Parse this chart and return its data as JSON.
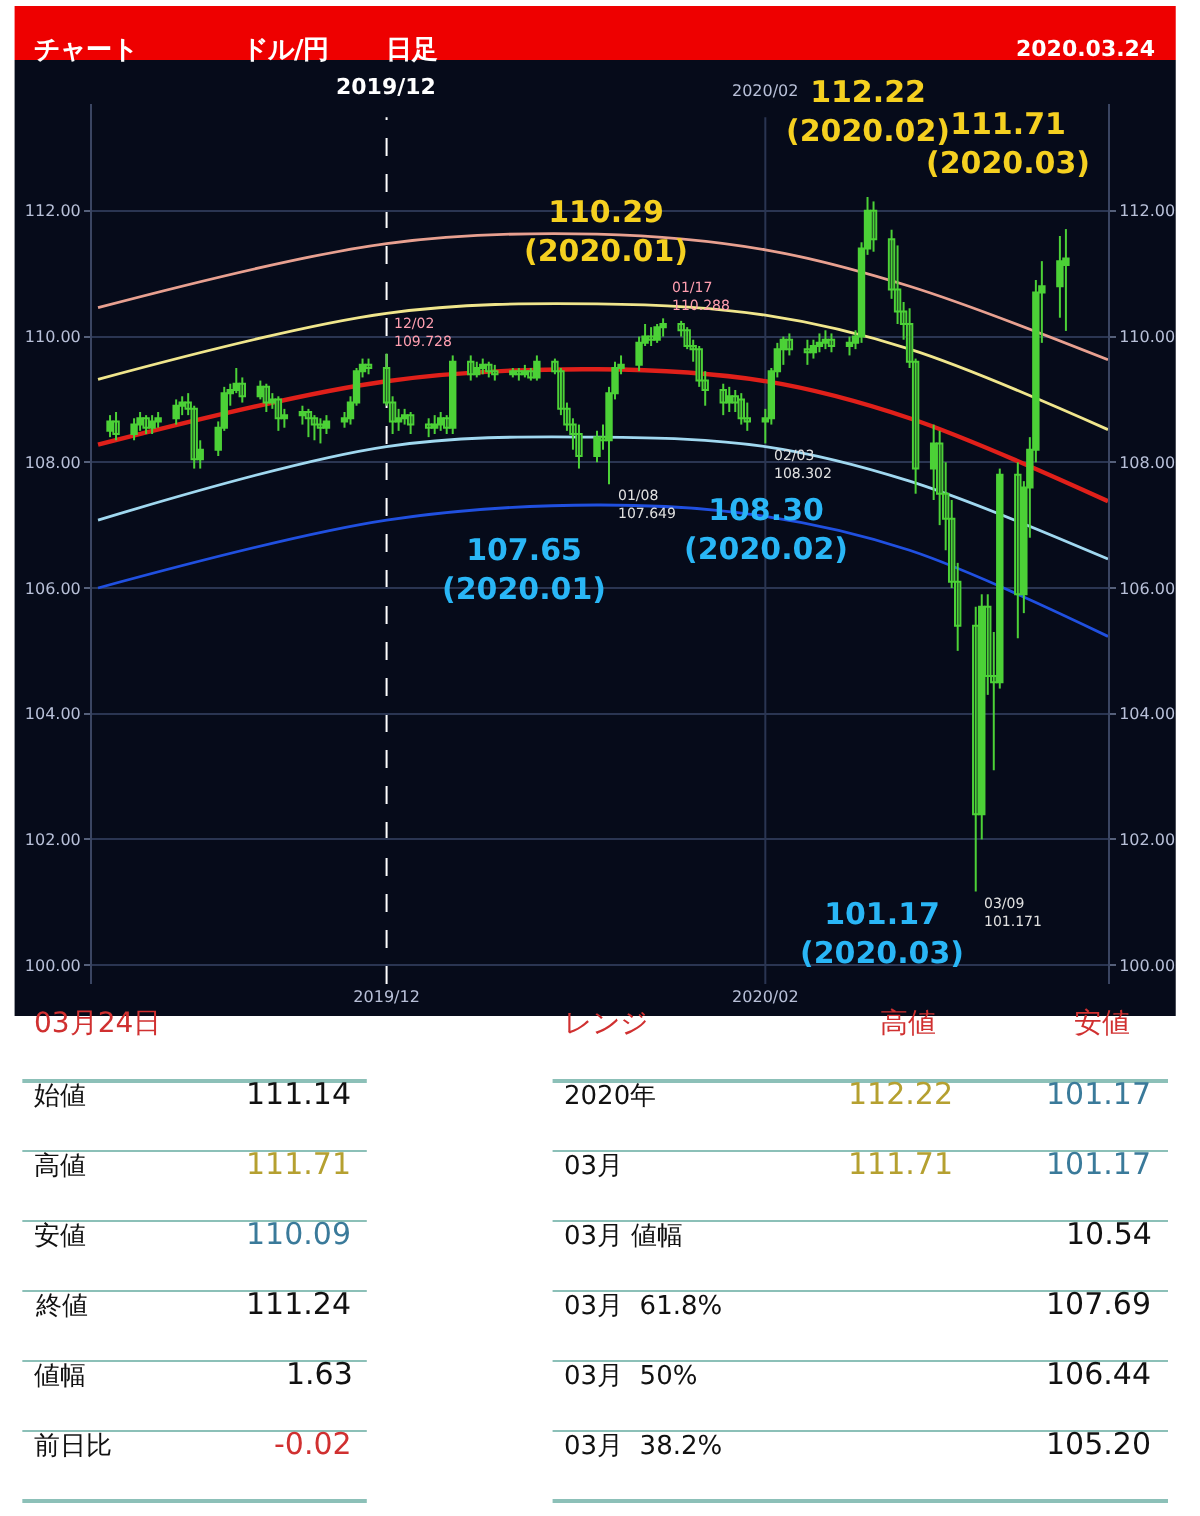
{
  "chart_data": [
    {
      "type": "candlestick",
      "title": "チャート",
      "subtitle": "ドル/円",
      "color": "#4cd137",
      "x": [
        "2019-10-17",
        "2019-10-18",
        "2019-10-21",
        "2019-10-22",
        "2019-10-23",
        "2019-10-24",
        "2019-10-25",
        "2019-10-28",
        "2019-10-29",
        "2019-10-30",
        "2019-10-31",
        "2019-11-01",
        "2019-11-04",
        "2019-11-05",
        "2019-11-06",
        "2019-11-07",
        "2019-11-08",
        "2019-11-11",
        "2019-11-12",
        "2019-11-13",
        "2019-11-14",
        "2019-11-15",
        "2019-11-18",
        "2019-11-19",
        "2019-11-20",
        "2019-11-21",
        "2019-11-22",
        "2019-11-25",
        "2019-11-26",
        "2019-11-27",
        "2019-11-28",
        "2019-11-29",
        "2019-12-02",
        "2019-12-03",
        "2019-12-04",
        "2019-12-05",
        "2019-12-06",
        "2019-12-09",
        "2019-12-10",
        "2019-12-11",
        "2019-12-12",
        "2019-12-13",
        "2019-12-16",
        "2019-12-17",
        "2019-12-18",
        "2019-12-19",
        "2019-12-20",
        "2019-12-23",
        "2019-12-24",
        "2019-12-25",
        "2019-12-26",
        "2019-12-27",
        "2019-12-30",
        "2019-12-31",
        "2020-01-01",
        "2020-01-02",
        "2020-01-03",
        "2020-01-06",
        "2020-01-07",
        "2020-01-08",
        "2020-01-09",
        "2020-01-10",
        "2020-01-13",
        "2020-01-14",
        "2020-01-15",
        "2020-01-16",
        "2020-01-17",
        "2020-01-20",
        "2020-01-21",
        "2020-01-22",
        "2020-01-23",
        "2020-01-24",
        "2020-01-27",
        "2020-01-28",
        "2020-01-29",
        "2020-01-30",
        "2020-01-31",
        "2020-02-03",
        "2020-02-04",
        "2020-02-05",
        "2020-02-06",
        "2020-02-07",
        "2020-02-10",
        "2020-02-11",
        "2020-02-12",
        "2020-02-13",
        "2020-02-14",
        "2020-02-17",
        "2020-02-18",
        "2020-02-19",
        "2020-02-20",
        "2020-02-21",
        "2020-02-24",
        "2020-02-25",
        "2020-02-26",
        "2020-02-27",
        "2020-02-28",
        "2020-03-02",
        "2020-03-03",
        "2020-03-04",
        "2020-03-05",
        "2020-03-06",
        "2020-03-09",
        "2020-03-10",
        "2020-03-11",
        "2020-03-12",
        "2020-03-13",
        "2020-03-16",
        "2020-03-17",
        "2020-03-18",
        "2020-03-19",
        "2020-03-20",
        "2020-03-23",
        "2020-03-24"
      ],
      "ohlc": [
        [
          108.5,
          108.75,
          108.4,
          108.65
        ],
        [
          108.65,
          108.8,
          108.35,
          108.45
        ],
        [
          108.45,
          108.7,
          108.35,
          108.6
        ],
        [
          108.6,
          108.8,
          108.5,
          108.7
        ],
        [
          108.7,
          108.75,
          108.45,
          108.55
        ],
        [
          108.55,
          108.75,
          108.45,
          108.65
        ],
        [
          108.65,
          108.8,
          108.55,
          108.7
        ],
        [
          108.7,
          109.0,
          108.6,
          108.9
        ],
        [
          108.9,
          109.05,
          108.75,
          108.95
        ],
        [
          108.95,
          109.1,
          108.75,
          108.85
        ],
        [
          108.85,
          108.9,
          107.9,
          108.05
        ],
        [
          108.05,
          108.35,
          107.9,
          108.2
        ],
        [
          108.2,
          108.65,
          108.1,
          108.55
        ],
        [
          108.55,
          109.2,
          108.5,
          109.1
        ],
        [
          109.1,
          109.25,
          108.9,
          109.15
        ],
        [
          109.15,
          109.5,
          109.1,
          109.25
        ],
        [
          109.25,
          109.35,
          108.95,
          109.05
        ],
        [
          109.05,
          109.3,
          109.0,
          109.2
        ],
        [
          109.2,
          109.25,
          108.8,
          108.95
        ],
        [
          108.95,
          109.1,
          108.85,
          109.0
        ],
        [
          109.0,
          109.05,
          108.5,
          108.7
        ],
        [
          108.7,
          108.85,
          108.55,
          108.75
        ],
        [
          108.75,
          108.9,
          108.6,
          108.8
        ],
        [
          108.8,
          108.85,
          108.4,
          108.7
        ],
        [
          108.7,
          108.75,
          108.35,
          108.6
        ],
        [
          108.6,
          108.7,
          108.3,
          108.55
        ],
        [
          108.55,
          108.75,
          108.45,
          108.65
        ],
        [
          108.65,
          108.8,
          108.55,
          108.7
        ],
        [
          108.7,
          109.05,
          108.6,
          108.95
        ],
        [
          108.95,
          109.5,
          108.9,
          109.45
        ],
        [
          109.45,
          109.65,
          109.35,
          109.55
        ],
        [
          109.55,
          109.65,
          109.4,
          109.5
        ],
        [
          109.5,
          109.73,
          108.9,
          108.95
        ],
        [
          108.95,
          109.05,
          108.45,
          108.65
        ],
        [
          108.65,
          108.85,
          108.5,
          108.7
        ],
        [
          108.7,
          108.85,
          108.6,
          108.75
        ],
        [
          108.75,
          108.8,
          108.45,
          108.6
        ],
        [
          108.6,
          108.7,
          108.4,
          108.55
        ],
        [
          108.55,
          108.75,
          108.45,
          108.6
        ],
        [
          108.6,
          108.8,
          108.5,
          108.7
        ],
        [
          108.7,
          108.75,
          108.45,
          108.55
        ],
        [
          108.55,
          109.7,
          108.45,
          109.6
        ],
        [
          109.6,
          109.7,
          109.3,
          109.4
        ],
        [
          109.4,
          109.6,
          109.35,
          109.5
        ],
        [
          109.5,
          109.65,
          109.4,
          109.55
        ],
        [
          109.55,
          109.6,
          109.35,
          109.45
        ],
        [
          109.45,
          109.55,
          109.3,
          109.4
        ],
        [
          109.4,
          109.5,
          109.35,
          109.45
        ],
        [
          109.45,
          109.5,
          109.3,
          109.4
        ],
        [
          109.4,
          109.55,
          109.35,
          109.45
        ],
        [
          109.45,
          109.5,
          109.3,
          109.35
        ],
        [
          109.35,
          109.7,
          109.3,
          109.6
        ],
        [
          109.6,
          109.65,
          109.4,
          109.45
        ],
        [
          109.45,
          109.5,
          108.75,
          108.85
        ],
        [
          108.85,
          108.95,
          108.5,
          108.6
        ],
        [
          108.6,
          108.7,
          108.2,
          108.45
        ],
        [
          108.45,
          108.6,
          107.9,
          108.1
        ],
        [
          108.1,
          108.5,
          108.0,
          108.4
        ],
        [
          108.4,
          108.6,
          108.2,
          108.35
        ],
        [
          108.35,
          109.2,
          107.65,
          109.1
        ],
        [
          109.1,
          109.6,
          109.0,
          109.5
        ],
        [
          109.5,
          109.7,
          109.4,
          109.55
        ],
        [
          109.55,
          110.0,
          109.45,
          109.9
        ],
        [
          109.9,
          110.2,
          109.85,
          110.0
        ],
        [
          110.0,
          110.15,
          109.85,
          109.95
        ],
        [
          109.95,
          110.2,
          109.9,
          110.15
        ],
        [
          110.15,
          110.29,
          110.0,
          110.2
        ],
        [
          110.2,
          110.25,
          110.0,
          110.1
        ],
        [
          110.1,
          110.15,
          109.8,
          109.85
        ],
        [
          109.85,
          109.95,
          109.6,
          109.8
        ],
        [
          109.8,
          109.85,
          109.2,
          109.3
        ],
        [
          109.3,
          109.45,
          108.9,
          109.15
        ],
        [
          109.15,
          109.25,
          108.75,
          108.95
        ],
        [
          108.95,
          109.2,
          108.8,
          109.05
        ],
        [
          109.05,
          109.15,
          108.8,
          108.95
        ],
        [
          109.0,
          109.1,
          108.6,
          108.7
        ],
        [
          108.7,
          108.95,
          108.5,
          108.65
        ],
        [
          108.65,
          108.85,
          108.3,
          108.7
        ],
        [
          108.7,
          109.5,
          108.6,
          109.45
        ],
        [
          109.45,
          109.9,
          109.35,
          109.8
        ],
        [
          109.8,
          110.0,
          109.55,
          109.95
        ],
        [
          109.95,
          110.05,
          109.7,
          109.8
        ],
        [
          109.8,
          109.95,
          109.55,
          109.75
        ],
        [
          109.75,
          109.95,
          109.65,
          109.85
        ],
        [
          109.85,
          110.05,
          109.75,
          109.9
        ],
        [
          109.9,
          110.1,
          109.8,
          109.95
        ],
        [
          109.95,
          110.05,
          109.75,
          109.85
        ],
        [
          109.85,
          110.0,
          109.7,
          109.9
        ],
        [
          109.9,
          110.1,
          109.8,
          110.0
        ],
        [
          110.0,
          111.5,
          109.9,
          111.4
        ],
        [
          111.4,
          112.22,
          111.3,
          112.0
        ],
        [
          112.0,
          112.15,
          111.35,
          111.55
        ],
        [
          111.55,
          111.7,
          110.6,
          110.75
        ],
        [
          110.75,
          111.45,
          110.2,
          110.4
        ],
        [
          110.4,
          110.55,
          109.95,
          110.2
        ],
        [
          110.2,
          110.45,
          109.5,
          109.6
        ],
        [
          109.6,
          109.65,
          107.5,
          107.9
        ],
        [
          107.9,
          108.6,
          107.4,
          108.3
        ],
        [
          108.3,
          108.5,
          107.0,
          107.5
        ],
        [
          107.5,
          108.0,
          106.6,
          107.1
        ],
        [
          107.1,
          107.4,
          106.0,
          106.1
        ],
        [
          106.1,
          106.4,
          105.0,
          105.4
        ],
        [
          105.4,
          105.7,
          101.17,
          102.4
        ],
        [
          102.4,
          105.9,
          102.0,
          105.7
        ],
        [
          105.7,
          105.9,
          104.3,
          104.6
        ],
        [
          104.6,
          105.3,
          103.1,
          104.5
        ],
        [
          104.5,
          107.9,
          104.4,
          107.8
        ],
        [
          107.8,
          108.0,
          105.2,
          105.9
        ],
        [
          105.9,
          107.7,
          105.6,
          107.6
        ],
        [
          107.6,
          108.4,
          106.8,
          108.2
        ],
        [
          108.2,
          110.9,
          108.0,
          110.7
        ],
        [
          110.7,
          111.2,
          109.9,
          110.8
        ],
        [
          110.8,
          111.6,
          110.3,
          111.2
        ],
        [
          111.14,
          111.71,
          110.09,
          111.24
        ]
      ],
      "series": [
        {
          "type": "line",
          "color": "#e8a090",
          "x": [
            "2019-10-15",
            "2019-12-02",
            "2020-01-06",
            "2020-02-03",
            "2020-02-27",
            "2020-03-31"
          ],
          "values": [
            110.46,
            111.48,
            111.63,
            111.38,
            110.8,
            109.63
          ]
        },
        {
          "type": "line",
          "color": "#f0e68c",
          "x": [
            "2019-10-15",
            "2019-12-02",
            "2020-01-06",
            "2020-02-03",
            "2020-02-27",
            "2020-03-31"
          ],
          "values": [
            109.32,
            110.37,
            110.52,
            110.34,
            109.8,
            108.52
          ]
        },
        {
          "type": "line",
          "color": "#e0201a",
          "x": [
            "2019-10-15",
            "2019-12-02",
            "2020-01-06",
            "2020-02-03",
            "2020-02-27",
            "2020-03-31"
          ],
          "values": [
            108.28,
            109.29,
            109.48,
            109.29,
            108.7,
            107.38
          ]
        },
        {
          "type": "line",
          "color": "#a0d8f0",
          "x": [
            "2019-10-15",
            "2019-12-02",
            "2020-01-06",
            "2020-02-03",
            "2020-02-27",
            "2020-03-31"
          ],
          "values": [
            107.08,
            108.25,
            108.4,
            108.25,
            107.7,
            106.46
          ]
        },
        {
          "type": "line",
          "color": "#2050e0",
          "x": [
            "2019-10-15",
            "2019-12-02",
            "2020-01-06",
            "2020-02-03",
            "2020-02-27",
            "2020-03-31"
          ],
          "values": [
            106.0,
            107.08,
            107.32,
            107.14,
            106.6,
            105.23
          ]
        }
      ],
      "xlim": [
        "2019-10-14",
        "2020-03-31"
      ],
      "xticks": [
        {
          "value": "2019-12-02",
          "label": "2019/12"
        },
        {
          "value": "2020-02-03",
          "label": "2020/02"
        }
      ],
      "ylim": [
        99.7,
        113.7
      ],
      "yticks": [
        {
          "value": 100,
          "label": "100.00"
        },
        {
          "value": 102,
          "label": "102.00"
        },
        {
          "value": 104,
          "label": "104.00"
        },
        {
          "value": 106,
          "label": "106.00"
        },
        {
          "value": 108,
          "label": "108.00"
        },
        {
          "value": 110,
          "label": "110.00"
        },
        {
          "value": 112,
          "label": "112.00"
        }
      ],
      "y2lim": [
        99.7,
        113.7
      ],
      "y2ticks": [
        {
          "value": 100,
          "label": "100.00"
        },
        {
          "value": 102,
          "label": "102.00"
        },
        {
          "value": 104,
          "label": "104.00"
        },
        {
          "value": 106,
          "label": "106.00"
        },
        {
          "value": 108,
          "label": "108.00"
        },
        {
          "value": 110,
          "label": "110.00"
        },
        {
          "value": 112,
          "label": "112.00"
        }
      ],
      "grid": "y",
      "ref_lines": [
        {
          "axis": "x",
          "value": "2019-12-02",
          "label": "2019/12",
          "color": "#ffffff",
          "line_style": "dashed"
        },
        {
          "axis": "x",
          "value": "2020-02-03",
          "label": "2020/02",
          "color": "#2a3552",
          "line_style": "solid"
        }
      ],
      "annotations": [
        "日足",
        "2020.03.24",
        {
          "text": "112.22\n(2020.02)",
          "x": "2020-02-20",
          "y": 112.22
        },
        {
          "text": "110.29\n(2020.01)",
          "x": "2020-01-17",
          "y": 110.29
        },
        {
          "text": "111.71\n(2020.03)",
          "x": "2020-03-24",
          "y": 111.71
        },
        {
          "text": "107.65\n(2020.01)",
          "x": "2020-01-08",
          "y": 107.65
        },
        {
          "text": "108.30\n(2020.02)",
          "x": "2020-02-03",
          "y": 108.3
        },
        {
          "text": "101.17\n(2020.03)",
          "x": "2020-03-09",
          "y": 101.17
        },
        {
          "text": "12/02\n109.728",
          "x": "2019-12-02",
          "y": 109.728
        },
        {
          "text": "01/17\n110.288",
          "x": "2020-01-17",
          "y": 110.288
        },
        {
          "text": "01/08\n107.649",
          "x": "2020-01-08",
          "y": 107.649
        },
        {
          "text": "02/03\n108.302",
          "x": "2020-02-03",
          "y": 108.302
        },
        {
          "text": "03/09\n101.171",
          "x": "2020-03-09",
          "y": 101.171
        }
      ]
    },
    {
      "type": "other",
      "title": "03月24日",
      "categories": [
        "始値",
        "高値",
        "安値",
        "終値",
        "値幅",
        "前日比"
      ],
      "series": [
        {
          "values": [
            111.14,
            111.71,
            110.09,
            111.24,
            1.63,
            -0.02
          ],
          "value_labels": [
            "111.14",
            "111.71",
            "110.09",
            "111.24",
            "1.63",
            "-0.02"
          ],
          "colors": [
            "#111111",
            "#b5a030",
            "#3a7a9a",
            "#111111",
            "#111111",
            "#d03030"
          ]
        }
      ]
    },
    {
      "type": "other",
      "title": "レンジ",
      "categories": [
        "2020年",
        "03月",
        "03月 値幅",
        "03月  61.8%",
        "03月  50%",
        "03月  38.2%"
      ],
      "series": [
        {
          "name": "高値",
          "values": [
            112.22,
            111.71,
            null,
            null,
            null,
            null
          ],
          "value_labels": [
            "112.22",
            "111.71",
            null,
            null,
            null,
            null
          ],
          "colors": [
            "#b5a030",
            "#b5a030",
            null,
            null,
            null,
            null
          ]
        },
        {
          "name": "安値",
          "values": [
            101.17,
            101.17,
            10.54,
            107.69,
            106.44,
            105.2
          ],
          "value_labels": [
            "101.17",
            "101.17",
            "10.54",
            "107.69",
            "106.44",
            "105.20"
          ],
          "colors": [
            "#3a7a9a",
            "#3a7a9a",
            "#111111",
            "#111111",
            "#111111",
            "#111111"
          ]
        }
      ]
    }
  ]
}
